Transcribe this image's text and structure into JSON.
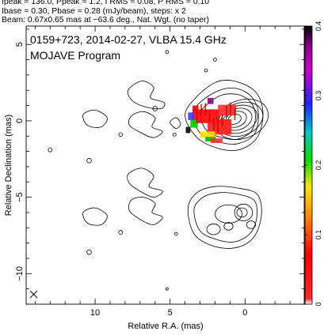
{
  "header": {
    "line1": "Ipeak = 136.0, Ppeak = 1.2, I RMS = 0.08, P RMS = 0.10",
    "line2": "Ibase = 0.30, Pbase = 0.28 (mJy/beam), steps: x 2",
    "line3": "Beam: 0.67x0.65 mas at −63.6 deg., Nat. Wgt. (no taper)"
  },
  "plot": {
    "title_line1": "0159+723, 2014-02-27, VLBA 15.4 GHz",
    "title_line2": "MOJAVE Program"
  },
  "chart_data": {
    "type": "contour",
    "xlabel": "Relative R.A. (mas)",
    "ylabel": "Relative Declination (mas)",
    "xlim": [
      14.6,
      -4.0
    ],
    "ylim": [
      -12.0,
      6.2
    ],
    "x_ticks": [
      10,
      5,
      0
    ],
    "y_ticks": [
      5,
      0,
      -5,
      -10
    ],
    "colorbar": {
      "range": [
        0,
        0.4
      ],
      "ticks": [
        0,
        0.1,
        0.2,
        0.3,
        0.4
      ],
      "tick_labels": [
        "0",
        "0.1",
        "0.2",
        "0.3",
        "0.4"
      ]
    },
    "panels": [
      {
        "name": "",
        "center": [
          0.2,
          0.1
        ],
        "contour_levels": 9,
        "peak": 136.0
      },
      {
        "name": "",
        "center": [
          0.2,
          -6.3
        ],
        "contour_levels": 6,
        "peak": 1.2
      }
    ]
  }
}
